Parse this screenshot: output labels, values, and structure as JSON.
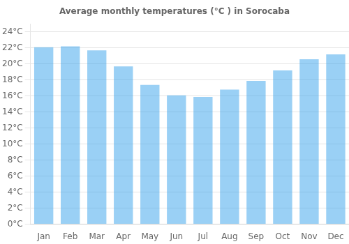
{
  "chart_data": {
    "type": "bar",
    "title": "Average monthly temperatures (°C ) in Sorocaba",
    "categories": [
      "Jan",
      "Feb",
      "Mar",
      "Apr",
      "May",
      "Jun",
      "Jul",
      "Aug",
      "Sep",
      "Oct",
      "Nov",
      "Dec"
    ],
    "values": [
      22.1,
      22.2,
      21.7,
      19.7,
      17.4,
      16.1,
      15.9,
      16.8,
      17.9,
      19.2,
      20.6,
      21.2
    ],
    "ylim": [
      0,
      25
    ],
    "yticks": [
      {
        "value": 0,
        "label": "0°C"
      },
      {
        "value": 2,
        "label": "2°C"
      },
      {
        "value": 4,
        "label": "4°C"
      },
      {
        "value": 6,
        "label": "6°C"
      },
      {
        "value": 8,
        "label": "8°C"
      },
      {
        "value": 10,
        "label": "10°C"
      },
      {
        "value": 12,
        "label": "12°C"
      },
      {
        "value": 14,
        "label": "14°C"
      },
      {
        "value": 16,
        "label": "16°C"
      },
      {
        "value": 18,
        "label": "18°C"
      },
      {
        "value": 20,
        "label": "20°C"
      },
      {
        "value": 22,
        "label": "22°C"
      },
      {
        "value": 24,
        "label": "24°C"
      }
    ],
    "grid": true
  }
}
